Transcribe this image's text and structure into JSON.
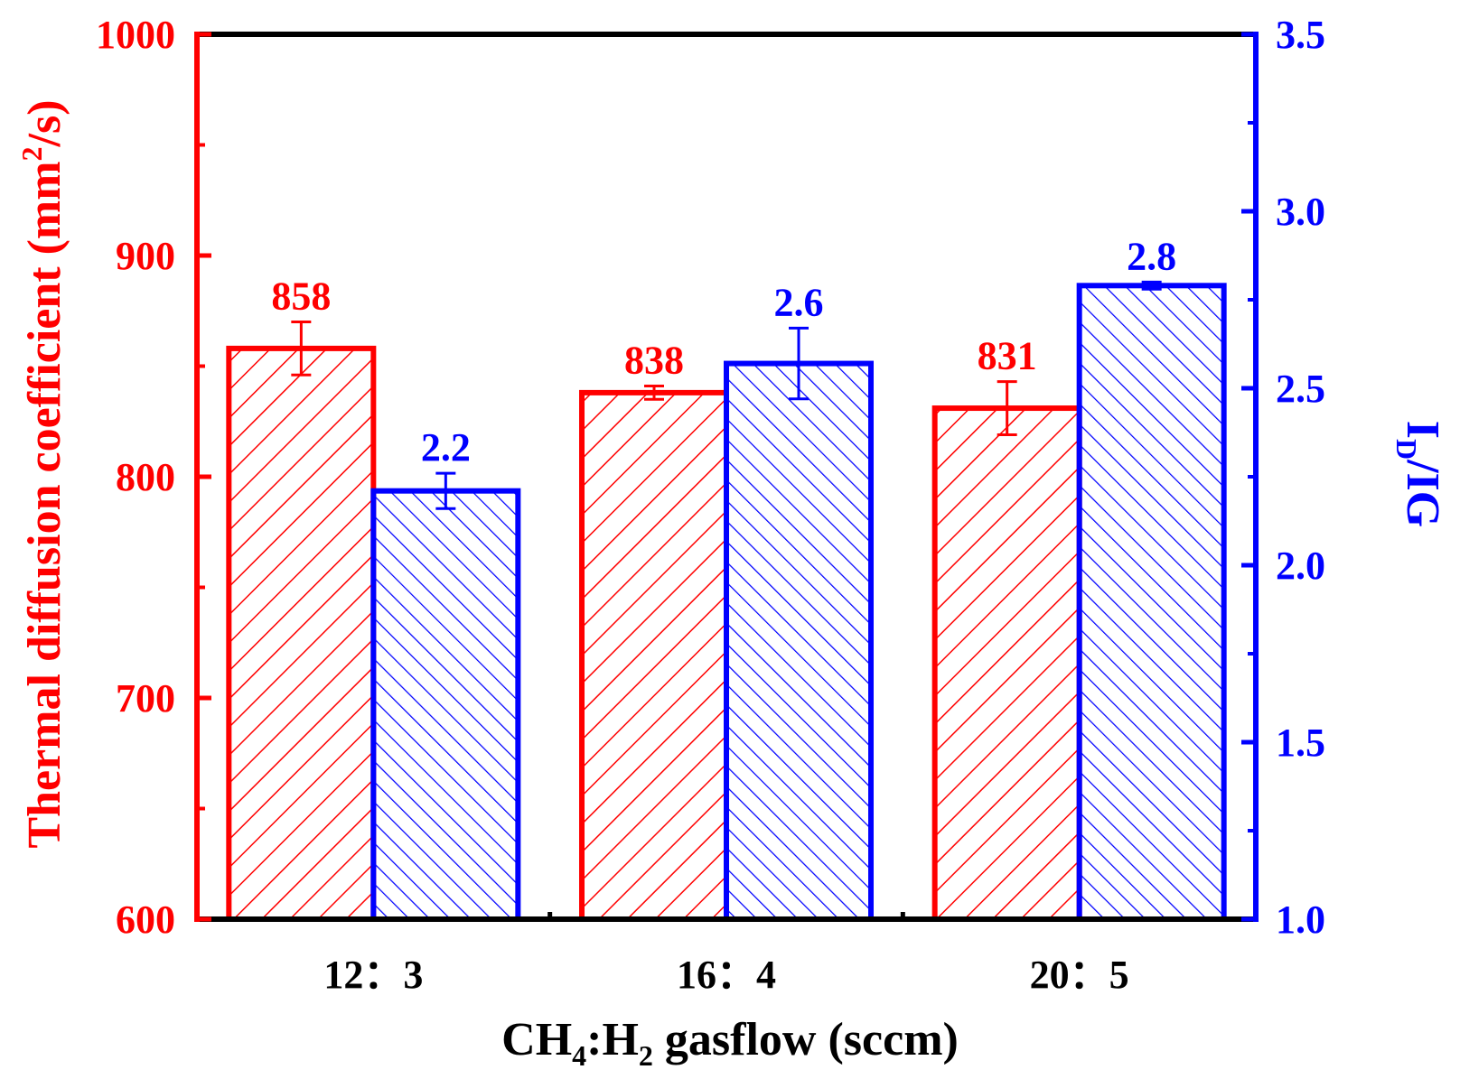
{
  "chart_data": {
    "type": "bar",
    "categories": [
      "12：3",
      "16：4",
      "20：5"
    ],
    "xlabel": {
      "main": "CH",
      "sub1": "4",
      "mid": ":H",
      "sub2": "2",
      "rest": " gasflow (sccm)"
    },
    "ylabel_left": {
      "main": "Thermal diffusion coefficient (mm",
      "sup": "2",
      "rest": "/s)"
    },
    "ylabel_right": {
      "main": "I",
      "sub": "D",
      "rest": "/IG"
    },
    "ylim_left": [
      600,
      1000
    ],
    "ylim_right": [
      1.0,
      3.5
    ],
    "yticks_left": [
      "600",
      "700",
      "800",
      "900",
      "1000"
    ],
    "yticks_right": [
      "1.0",
      "1.5",
      "2.0",
      "2.5",
      "3.0",
      "3.5"
    ],
    "series": [
      {
        "values": [
          858,
          838,
          831
        ],
        "errors": [
          12,
          3,
          12
        ],
        "labels": [
          "858",
          "838",
          "831"
        ],
        "color": "#ff0000",
        "axis": "left",
        "hatch": "forward"
      },
      {
        "values": [
          2.21,
          2.57,
          2.79
        ],
        "errors": [
          0.05,
          0.1,
          0.01
        ],
        "labels": [
          "2.2",
          "2.6",
          "2.8"
        ],
        "color": "#0000ff",
        "axis": "right",
        "hatch": "backward"
      }
    ],
    "grid": false,
    "legend": "none"
  }
}
